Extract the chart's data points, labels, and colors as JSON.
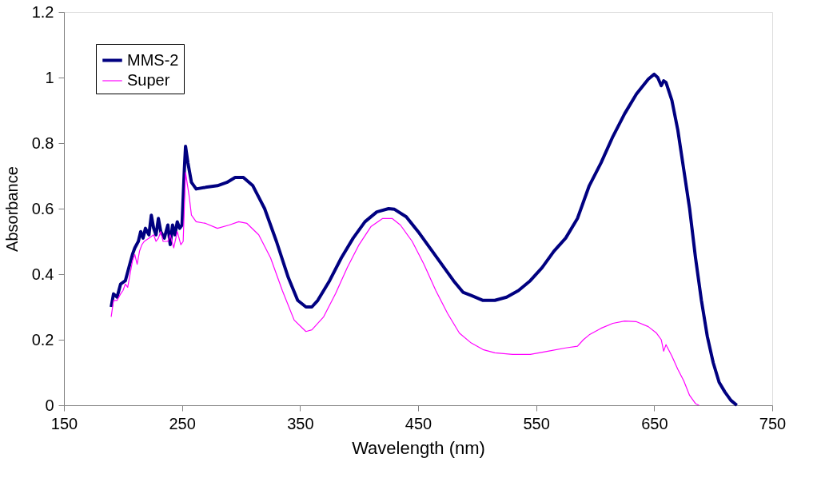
{
  "chart_data": {
    "type": "line",
    "xlabel": "Wavelength (nm)",
    "ylabel": "Absorbance",
    "xlim": [
      150,
      750
    ],
    "xticks": [
      150,
      250,
      350,
      450,
      550,
      650,
      750
    ],
    "ylim": [
      0,
      1.2
    ],
    "yticks": [
      0,
      0.2,
      0.4,
      0.6,
      0.8,
      1,
      1.2
    ],
    "grid": false,
    "legend": "top left",
    "marker": "none",
    "line_style": "solid",
    "series": [
      {
        "name": "MMS-2",
        "color": "#000080",
        "x": [
          190,
          192,
          195,
          198,
          202,
          205,
          208,
          210,
          213,
          215,
          217,
          219,
          222,
          224,
          226,
          228,
          230,
          232,
          235,
          238,
          240,
          242,
          244,
          246,
          248,
          250,
          252,
          253,
          255,
          258,
          262,
          270,
          280,
          288,
          295,
          302,
          310,
          320,
          330,
          340,
          348,
          355,
          360,
          365,
          375,
          385,
          395,
          405,
          415,
          425,
          430,
          440,
          450,
          460,
          470,
          480,
          488,
          495,
          505,
          515,
          525,
          535,
          545,
          555,
          565,
          575,
          585,
          590,
          595,
          605,
          615,
          625,
          635,
          645,
          650,
          653,
          656,
          658,
          660,
          665,
          670,
          675,
          680,
          685,
          690,
          695,
          700,
          705,
          710,
          715,
          720
        ],
        "values": [
          0.3,
          0.34,
          0.33,
          0.37,
          0.38,
          0.42,
          0.46,
          0.48,
          0.5,
          0.53,
          0.51,
          0.54,
          0.52,
          0.58,
          0.54,
          0.52,
          0.57,
          0.53,
          0.51,
          0.55,
          0.49,
          0.55,
          0.52,
          0.56,
          0.54,
          0.55,
          0.72,
          0.79,
          0.74,
          0.68,
          0.66,
          0.665,
          0.67,
          0.68,
          0.695,
          0.695,
          0.67,
          0.6,
          0.5,
          0.39,
          0.32,
          0.3,
          0.3,
          0.32,
          0.38,
          0.45,
          0.51,
          0.56,
          0.59,
          0.6,
          0.598,
          0.575,
          0.53,
          0.48,
          0.43,
          0.38,
          0.345,
          0.335,
          0.32,
          0.32,
          0.33,
          0.35,
          0.38,
          0.42,
          0.47,
          0.51,
          0.57,
          0.62,
          0.67,
          0.74,
          0.82,
          0.89,
          0.95,
          0.995,
          1.01,
          1.0,
          0.975,
          0.99,
          0.985,
          0.93,
          0.84,
          0.72,
          0.6,
          0.45,
          0.32,
          0.21,
          0.13,
          0.07,
          0.04,
          0.015,
          0.0
        ]
      },
      {
        "name": "Super",
        "color": "#ff00ff",
        "x": [
          190,
          192,
          195,
          198,
          200,
          202,
          204,
          206,
          208,
          210,
          212,
          214,
          216,
          218,
          222,
          226,
          228,
          230,
          232,
          234,
          238,
          240,
          243,
          246,
          249,
          251,
          253,
          256,
          258,
          262,
          270,
          280,
          290,
          298,
          305,
          315,
          325,
          335,
          345,
          355,
          360,
          370,
          380,
          390,
          400,
          410,
          420,
          428,
          435,
          445,
          455,
          465,
          475,
          485,
          495,
          505,
          515,
          530,
          545,
          560,
          575,
          585,
          590,
          595,
          605,
          615,
          625,
          635,
          645,
          652,
          656,
          658,
          660,
          665,
          670,
          675,
          680,
          685,
          688
        ],
        "values": [
          0.27,
          0.32,
          0.32,
          0.34,
          0.35,
          0.37,
          0.36,
          0.4,
          0.44,
          0.46,
          0.43,
          0.47,
          0.49,
          0.5,
          0.51,
          0.52,
          0.5,
          0.51,
          0.53,
          0.5,
          0.5,
          0.52,
          0.48,
          0.53,
          0.49,
          0.5,
          0.71,
          0.64,
          0.58,
          0.56,
          0.555,
          0.54,
          0.55,
          0.56,
          0.555,
          0.52,
          0.45,
          0.35,
          0.26,
          0.225,
          0.23,
          0.27,
          0.34,
          0.42,
          0.49,
          0.545,
          0.57,
          0.57,
          0.55,
          0.5,
          0.43,
          0.35,
          0.28,
          0.22,
          0.19,
          0.17,
          0.16,
          0.155,
          0.155,
          0.165,
          0.175,
          0.18,
          0.2,
          0.215,
          0.235,
          0.25,
          0.257,
          0.255,
          0.24,
          0.22,
          0.2,
          0.165,
          0.185,
          0.15,
          0.11,
          0.075,
          0.03,
          0.005,
          0
        ]
      }
    ]
  }
}
